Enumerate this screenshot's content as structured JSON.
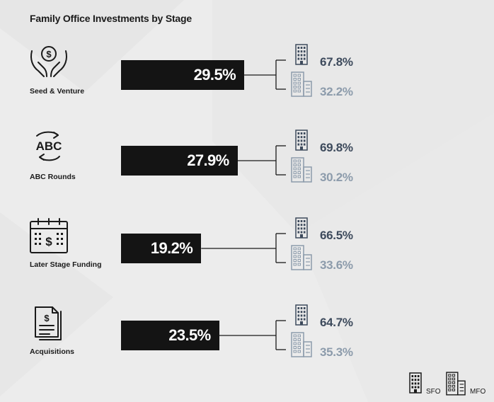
{
  "title": "Family Office Investments by Stage",
  "chart_data": {
    "type": "bar",
    "title": "Family Office Investments by Stage",
    "categories": [
      "Seed & Venture",
      "ABC Rounds",
      "Later Stage Funding",
      "Acquisitions"
    ],
    "values": [
      29.5,
      27.9,
      19.2,
      23.5
    ],
    "value_labels": [
      "29.5%",
      "27.9%",
      "19.2%",
      "23.5%"
    ],
    "breakdown": {
      "series": [
        {
          "name": "SFO",
          "values": [
            67.8,
            69.8,
            66.5,
            64.7
          ],
          "labels": [
            "67.8%",
            "69.8%",
            "66.5%",
            "64.7%"
          ],
          "color": "#3d4a5c"
        },
        {
          "name": "MFO",
          "values": [
            32.2,
            30.2,
            33.6,
            35.3
          ],
          "labels": [
            "32.2%",
            "30.2%",
            "33.6%",
            "35.3%"
          ],
          "color": "#8c9bab"
        }
      ]
    },
    "bar_color": "#141414",
    "legend": [
      "SFO",
      "MFO"
    ],
    "legend_position": "bottom-right"
  },
  "icons": [
    "money-hands-icon",
    "abc-cycle-icon",
    "calendar-dollar-icon",
    "documents-dollar-icon"
  ],
  "colors": {
    "background": "#ececec",
    "bar": "#141414",
    "sfo": "#3d4a5c",
    "mfo": "#8c9bab"
  }
}
